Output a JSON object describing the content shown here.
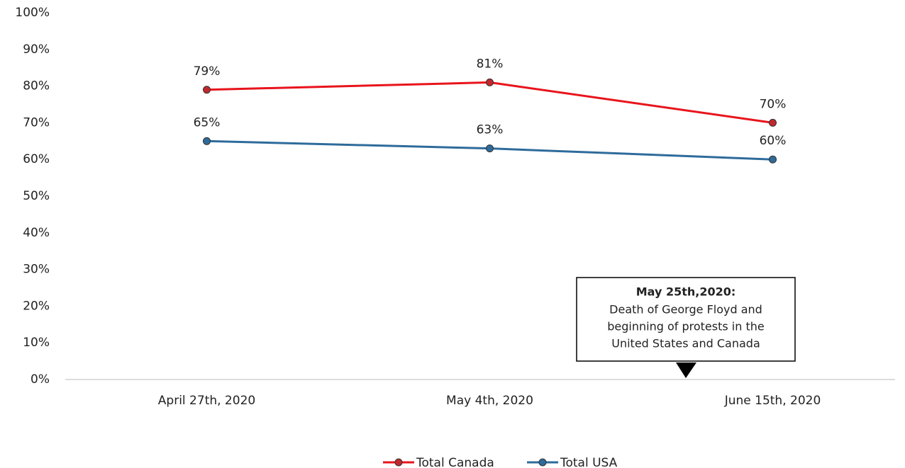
{
  "chart_data": {
    "type": "line",
    "categories": [
      "April 27th, 2020",
      "May 4th, 2020",
      "June 15th, 2020"
    ],
    "series": [
      {
        "name": "Total Canada",
        "color": "#e8141c",
        "marker_color": "#c0282d",
        "values": [
          79,
          81,
          70
        ],
        "value_labels": [
          "79%",
          "81%",
          "70%"
        ]
      },
      {
        "name": "Total USA",
        "color": "#2e6b9b",
        "marker_color": "#2e6b9b",
        "values": [
          65,
          63,
          60
        ],
        "value_labels": [
          "65%",
          "63%",
          "60%"
        ]
      }
    ],
    "ylim": [
      0,
      100
    ],
    "yticks": [
      {
        "value": 0,
        "label": "0%"
      },
      {
        "value": 10,
        "label": "10%"
      },
      {
        "value": 20,
        "label": "20%"
      },
      {
        "value": 30,
        "label": "30%"
      },
      {
        "value": 40,
        "label": "40%"
      },
      {
        "value": 50,
        "label": "50%"
      },
      {
        "value": 60,
        "label": "60%"
      },
      {
        "value": 70,
        "label": "70%"
      },
      {
        "value": 80,
        "label": "80%"
      },
      {
        "value": 90,
        "label": "90%"
      },
      {
        "value": 100,
        "label": "100%"
      }
    ],
    "grid": false,
    "legend": "bottom",
    "annotation": {
      "title": "May 25th,2020:",
      "lines": [
        "Death of George Floyd and",
        "beginning of protests in the",
        "United States and Canada"
      ]
    }
  }
}
